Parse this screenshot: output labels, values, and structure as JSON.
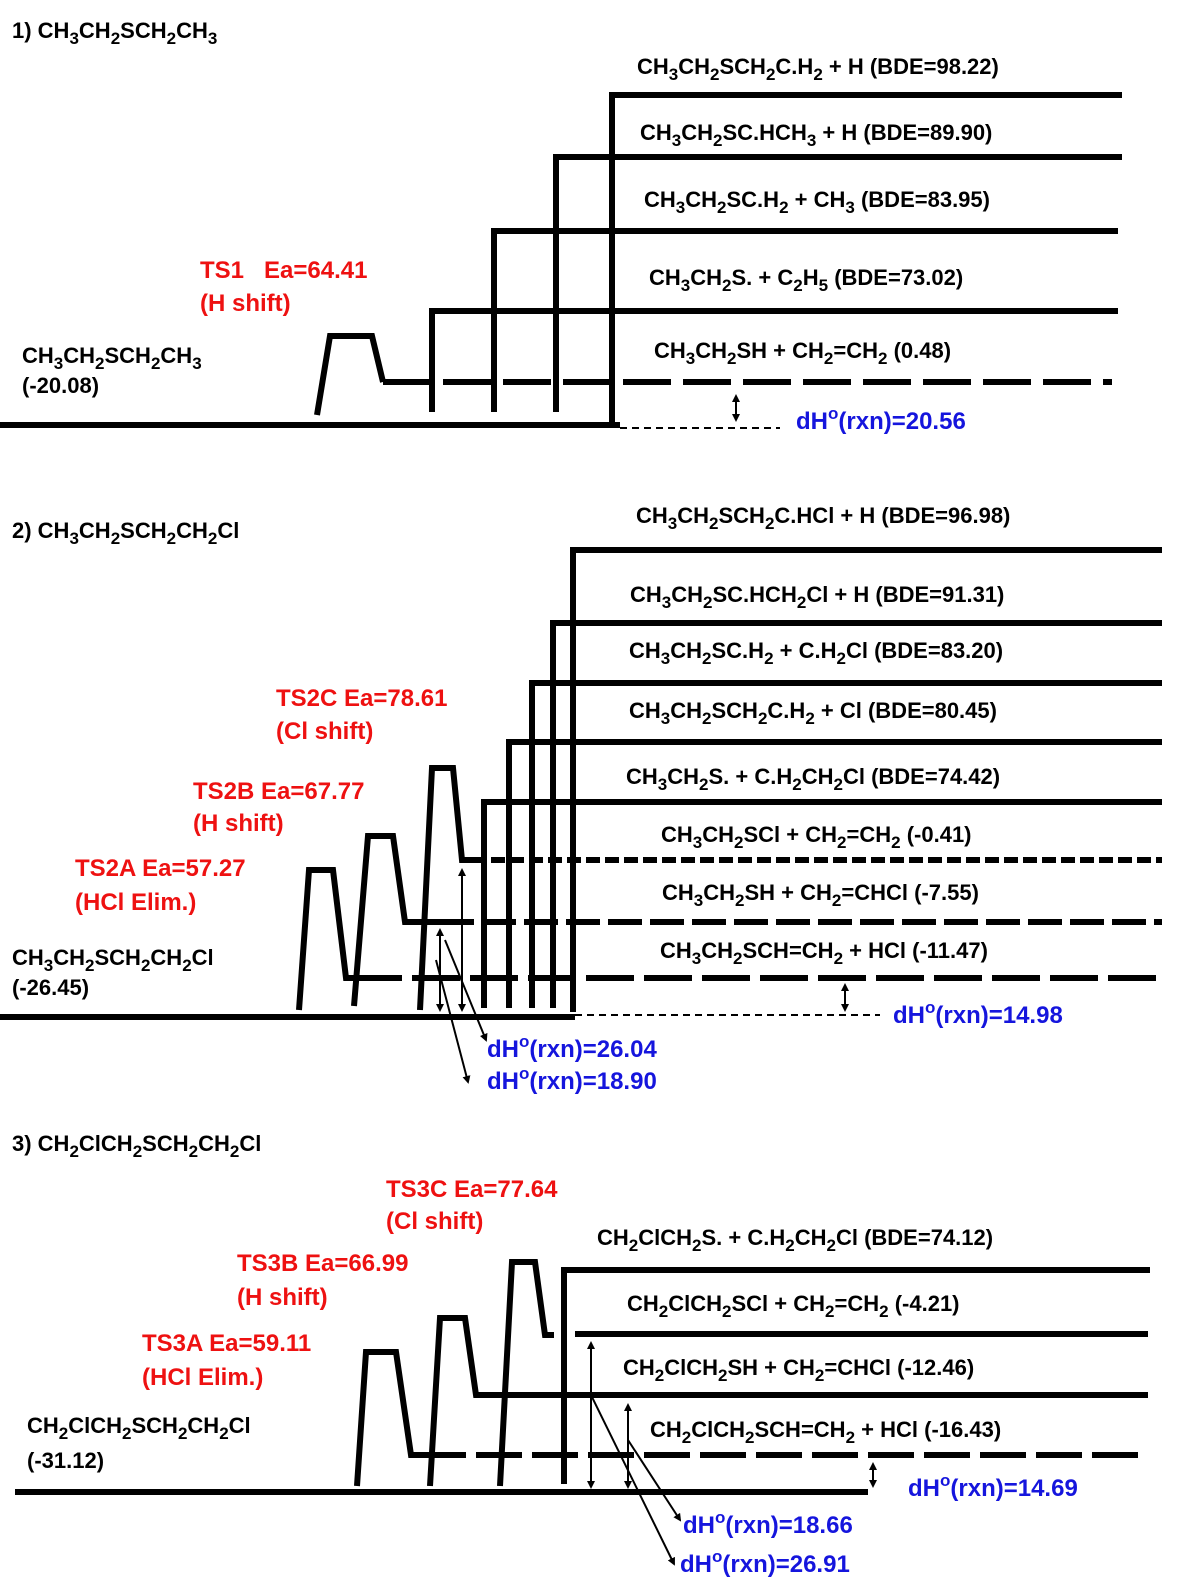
{
  "panels": [
    {
      "heading": {
        "parts": [
          [
            "1) CH",
            ""
          ],
          [
            "3",
            "s"
          ],
          [
            "CH",
            ""
          ],
          [
            "2",
            "s"
          ],
          [
            "SCH",
            ""
          ],
          [
            "2",
            "s"
          ],
          [
            "CH",
            ""
          ],
          [
            "3",
            "s"
          ]
        ]
      },
      "reactant": {
        "formula": [
          [
            "CH",
            ""
          ],
          [
            "3",
            "s"
          ],
          [
            "CH",
            ""
          ],
          [
            "2",
            "s"
          ],
          [
            "SCH",
            ""
          ],
          [
            "2",
            "s"
          ],
          [
            "CH",
            ""
          ],
          [
            "3",
            "s"
          ]
        ],
        "value": "(-20.08)"
      },
      "transition_states": [
        {
          "label": "TS1   Ea=64.41",
          "mechanism": "(H shift)"
        }
      ],
      "products": [
        {
          "parts": [
            [
              "CH",
              ""
            ],
            [
              "3",
              "s"
            ],
            [
              "CH",
              ""
            ],
            [
              "2",
              "s"
            ],
            [
              "SCH",
              ""
            ],
            [
              "2",
              "s"
            ],
            [
              "C.H",
              ""
            ],
            [
              "2",
              "s"
            ],
            [
              " + H (BDE=98.22)",
              ""
            ]
          ]
        },
        {
          "parts": [
            [
              "CH",
              ""
            ],
            [
              "3",
              "s"
            ],
            [
              "CH",
              ""
            ],
            [
              "2",
              "s"
            ],
            [
              "SC.HCH",
              ""
            ],
            [
              "3",
              "s"
            ],
            [
              " + H (BDE=89.90)",
              ""
            ]
          ]
        },
        {
          "parts": [
            [
              "CH",
              ""
            ],
            [
              "3",
              "s"
            ],
            [
              "CH",
              ""
            ],
            [
              "2",
              "s"
            ],
            [
              "SC.H",
              ""
            ],
            [
              "2",
              "s"
            ],
            [
              " + CH",
              ""
            ],
            [
              "3",
              "s"
            ],
            [
              " (BDE=83.95)",
              ""
            ]
          ]
        },
        {
          "parts": [
            [
              "CH",
              ""
            ],
            [
              "3",
              "s"
            ],
            [
              "CH",
              ""
            ],
            [
              "2",
              "s"
            ],
            [
              "S. + C",
              ""
            ],
            [
              "2",
              "s"
            ],
            [
              "H",
              ""
            ],
            [
              "5",
              "s"
            ],
            [
              " (BDE=73.02)",
              ""
            ]
          ]
        },
        {
          "parts": [
            [
              "CH",
              ""
            ],
            [
              "3",
              "s"
            ],
            [
              "CH",
              ""
            ],
            [
              "2",
              "s"
            ],
            [
              "SH + CH",
              ""
            ],
            [
              "2",
              "s"
            ],
            [
              "=CH",
              ""
            ],
            [
              "2",
              "s"
            ],
            [
              " (0.48)",
              ""
            ]
          ]
        }
      ],
      "reaction_enthalpies": [
        {
          "parts": [
            [
              "dH",
              ""
            ],
            [
              "o",
              "p"
            ],
            [
              "(rxn)=20.56",
              ""
            ]
          ]
        }
      ]
    },
    {
      "heading": {
        "parts": [
          [
            "2) CH",
            ""
          ],
          [
            "3",
            "s"
          ],
          [
            "CH",
            ""
          ],
          [
            "2",
            "s"
          ],
          [
            "SCH",
            ""
          ],
          [
            "2",
            "s"
          ],
          [
            "CH",
            ""
          ],
          [
            "2",
            "s"
          ],
          [
            "Cl",
            ""
          ]
        ]
      },
      "reactant": {
        "formula": [
          [
            "CH",
            ""
          ],
          [
            "3",
            "s"
          ],
          [
            "CH",
            ""
          ],
          [
            "2",
            "s"
          ],
          [
            "SCH",
            ""
          ],
          [
            "2",
            "s"
          ],
          [
            "CH",
            ""
          ],
          [
            "2",
            "s"
          ],
          [
            "Cl",
            ""
          ]
        ],
        "value": "(-26.45)"
      },
      "transition_states": [
        {
          "label": "TS2C Ea=78.61",
          "mechanism": "(Cl shift)"
        },
        {
          "label": "TS2B Ea=67.77",
          "mechanism": "(H shift)"
        },
        {
          "label": "TS2A Ea=57.27",
          "mechanism": "(HCl Elim.)"
        }
      ],
      "products": [
        {
          "parts": [
            [
              "CH",
              ""
            ],
            [
              "3",
              "s"
            ],
            [
              "CH",
              ""
            ],
            [
              "2",
              "s"
            ],
            [
              "SCH",
              ""
            ],
            [
              "2",
              "s"
            ],
            [
              "C.HCl + H (BDE=96.98)",
              ""
            ]
          ]
        },
        {
          "parts": [
            [
              "CH",
              ""
            ],
            [
              "3",
              "s"
            ],
            [
              "CH",
              ""
            ],
            [
              "2",
              "s"
            ],
            [
              "SC.HCH",
              ""
            ],
            [
              "2",
              "s"
            ],
            [
              "Cl + H (BDE=91.31)",
              ""
            ]
          ]
        },
        {
          "parts": [
            [
              "CH",
              ""
            ],
            [
              "3",
              "s"
            ],
            [
              "CH",
              ""
            ],
            [
              "2",
              "s"
            ],
            [
              "SC.H",
              ""
            ],
            [
              "2",
              "s"
            ],
            [
              " + C.H",
              ""
            ],
            [
              "2",
              "s"
            ],
            [
              "Cl (BDE=83.20)",
              ""
            ]
          ]
        },
        {
          "parts": [
            [
              "CH",
              ""
            ],
            [
              "3",
              "s"
            ],
            [
              "CH",
              ""
            ],
            [
              "2",
              "s"
            ],
            [
              "SCH",
              ""
            ],
            [
              "2",
              "s"
            ],
            [
              "C.H",
              ""
            ],
            [
              "2",
              "s"
            ],
            [
              " + Cl (BDE=80.45)",
              ""
            ]
          ]
        },
        {
          "parts": [
            [
              "CH",
              ""
            ],
            [
              "3",
              "s"
            ],
            [
              "CH",
              ""
            ],
            [
              "2",
              "s"
            ],
            [
              "S. + C.H",
              ""
            ],
            [
              "2",
              "s"
            ],
            [
              "CH",
              ""
            ],
            [
              "2",
              "s"
            ],
            [
              "Cl (BDE=74.42)",
              ""
            ]
          ]
        },
        {
          "parts": [
            [
              "CH",
              ""
            ],
            [
              "3",
              "s"
            ],
            [
              "CH",
              ""
            ],
            [
              "2",
              "s"
            ],
            [
              "SCl + CH",
              ""
            ],
            [
              "2",
              "s"
            ],
            [
              "=CH",
              ""
            ],
            [
              "2",
              "s"
            ],
            [
              " (-0.41)",
              ""
            ]
          ]
        },
        {
          "parts": [
            [
              "CH",
              ""
            ],
            [
              "3",
              "s"
            ],
            [
              "CH",
              ""
            ],
            [
              "2",
              "s"
            ],
            [
              "SH + CH",
              ""
            ],
            [
              "2",
              "s"
            ],
            [
              "=CHCl (-7.55)",
              ""
            ]
          ]
        },
        {
          "parts": [
            [
              "CH",
              ""
            ],
            [
              "3",
              "s"
            ],
            [
              "CH",
              ""
            ],
            [
              "2",
              "s"
            ],
            [
              "SCH=CH",
              ""
            ],
            [
              "2",
              "s"
            ],
            [
              " + HCl (-11.47)",
              ""
            ]
          ]
        }
      ],
      "reaction_enthalpies": [
        {
          "parts": [
            [
              "dH",
              ""
            ],
            [
              "o",
              "p"
            ],
            [
              "(rxn)=14.98",
              ""
            ]
          ]
        },
        {
          "parts": [
            [
              "dH",
              ""
            ],
            [
              "o",
              "p"
            ],
            [
              "(rxn)=26.04",
              ""
            ]
          ]
        },
        {
          "parts": [
            [
              "dH",
              ""
            ],
            [
              "o",
              "p"
            ],
            [
              "(rxn)=18.90",
              ""
            ]
          ]
        }
      ]
    },
    {
      "heading": {
        "parts": [
          [
            "3) CH",
            ""
          ],
          [
            "2",
            "s"
          ],
          [
            "ClCH",
            ""
          ],
          [
            "2",
            "s"
          ],
          [
            "SCH",
            ""
          ],
          [
            "2",
            "s"
          ],
          [
            "CH",
            ""
          ],
          [
            "2",
            "s"
          ],
          [
            "Cl",
            ""
          ]
        ]
      },
      "reactant": {
        "formula": [
          [
            "CH",
            ""
          ],
          [
            "2",
            "s"
          ],
          [
            "ClCH",
            ""
          ],
          [
            "2",
            "s"
          ],
          [
            "SCH",
            ""
          ],
          [
            "2",
            "s"
          ],
          [
            "CH",
            ""
          ],
          [
            "2",
            "s"
          ],
          [
            "Cl",
            ""
          ]
        ],
        "value": "(-31.12)"
      },
      "transition_states": [
        {
          "label": "TS3C Ea=77.64",
          "mechanism": "(Cl shift)"
        },
        {
          "label": "TS3B Ea=66.99",
          "mechanism": "(H shift)"
        },
        {
          "label": "TS3A Ea=59.11",
          "mechanism": "(HCl Elim.)"
        }
      ],
      "products": [
        {
          "parts": [
            [
              "CH",
              ""
            ],
            [
              "2",
              "s"
            ],
            [
              "ClCH",
              ""
            ],
            [
              "2",
              "s"
            ],
            [
              "S. + C.H",
              ""
            ],
            [
              "2",
              "s"
            ],
            [
              "CH",
              ""
            ],
            [
              "2",
              "s"
            ],
            [
              "Cl (BDE=74.12)",
              ""
            ]
          ]
        },
        {
          "parts": [
            [
              "CH",
              ""
            ],
            [
              "2",
              "s"
            ],
            [
              "ClCH",
              ""
            ],
            [
              "2",
              "s"
            ],
            [
              "SCl + CH",
              ""
            ],
            [
              "2",
              "s"
            ],
            [
              "=CH",
              ""
            ],
            [
              "2",
              "s"
            ],
            [
              " (-4.21)",
              ""
            ]
          ]
        },
        {
          "parts": [
            [
              "CH",
              ""
            ],
            [
              "2",
              "s"
            ],
            [
              "ClCH",
              ""
            ],
            [
              "2",
              "s"
            ],
            [
              "SH + CH",
              ""
            ],
            [
              "2",
              "s"
            ],
            [
              "=CHCl (-12.46)",
              ""
            ]
          ]
        },
        {
          "parts": [
            [
              "CH",
              ""
            ],
            [
              "2",
              "s"
            ],
            [
              "ClCH",
              ""
            ],
            [
              "2",
              "s"
            ],
            [
              "SCH=CH",
              ""
            ],
            [
              "2",
              "s"
            ],
            [
              " + HCl (-16.43)",
              ""
            ]
          ]
        }
      ],
      "reaction_enthalpies": [
        {
          "parts": [
            [
              "dH",
              ""
            ],
            [
              "o",
              "p"
            ],
            [
              "(rxn)=14.69",
              ""
            ]
          ]
        },
        {
          "parts": [
            [
              "dH",
              ""
            ],
            [
              "o",
              "p"
            ],
            [
              "(rxn)=18.66",
              ""
            ]
          ]
        },
        {
          "parts": [
            [
              "dH",
              ""
            ],
            [
              "o",
              "p"
            ],
            [
              "(rxn)=26.91",
              ""
            ]
          ]
        }
      ]
    }
  ]
}
